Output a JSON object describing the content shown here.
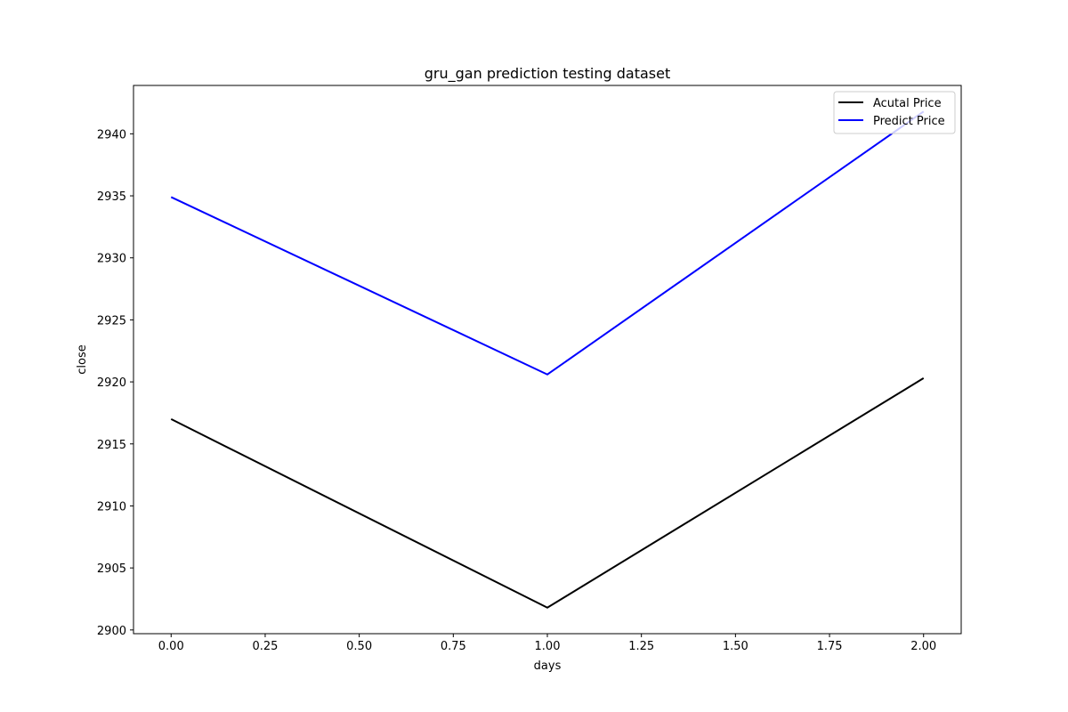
{
  "chart_data": {
    "type": "line",
    "title": "gru_gan prediction testing dataset",
    "xlabel": "days",
    "ylabel": "close",
    "x": [
      0,
      1,
      2
    ],
    "xlim": [
      -0.1,
      2.1
    ],
    "ylim": [
      2899.7,
      2943.9
    ],
    "xticks": [
      0.0,
      0.25,
      0.5,
      0.75,
      1.0,
      1.25,
      1.5,
      1.75,
      2.0
    ],
    "xtick_labels": [
      "0.00",
      "0.25",
      "0.50",
      "0.75",
      "1.00",
      "1.25",
      "1.50",
      "1.75",
      "2.00"
    ],
    "yticks": [
      2900,
      2905,
      2910,
      2915,
      2920,
      2925,
      2930,
      2935,
      2940
    ],
    "ytick_labels": [
      "2900",
      "2905",
      "2910",
      "2915",
      "2920",
      "2925",
      "2930",
      "2935",
      "2940"
    ],
    "grid": false,
    "legend_position": "top-right",
    "series": [
      {
        "name": "Acutal Price",
        "color": "#000000",
        "values": [
          2917.0,
          2901.8,
          2920.3
        ]
      },
      {
        "name": "Predict Price",
        "color": "#0000ff",
        "values": [
          2934.9,
          2920.6,
          2941.8
        ]
      }
    ]
  }
}
